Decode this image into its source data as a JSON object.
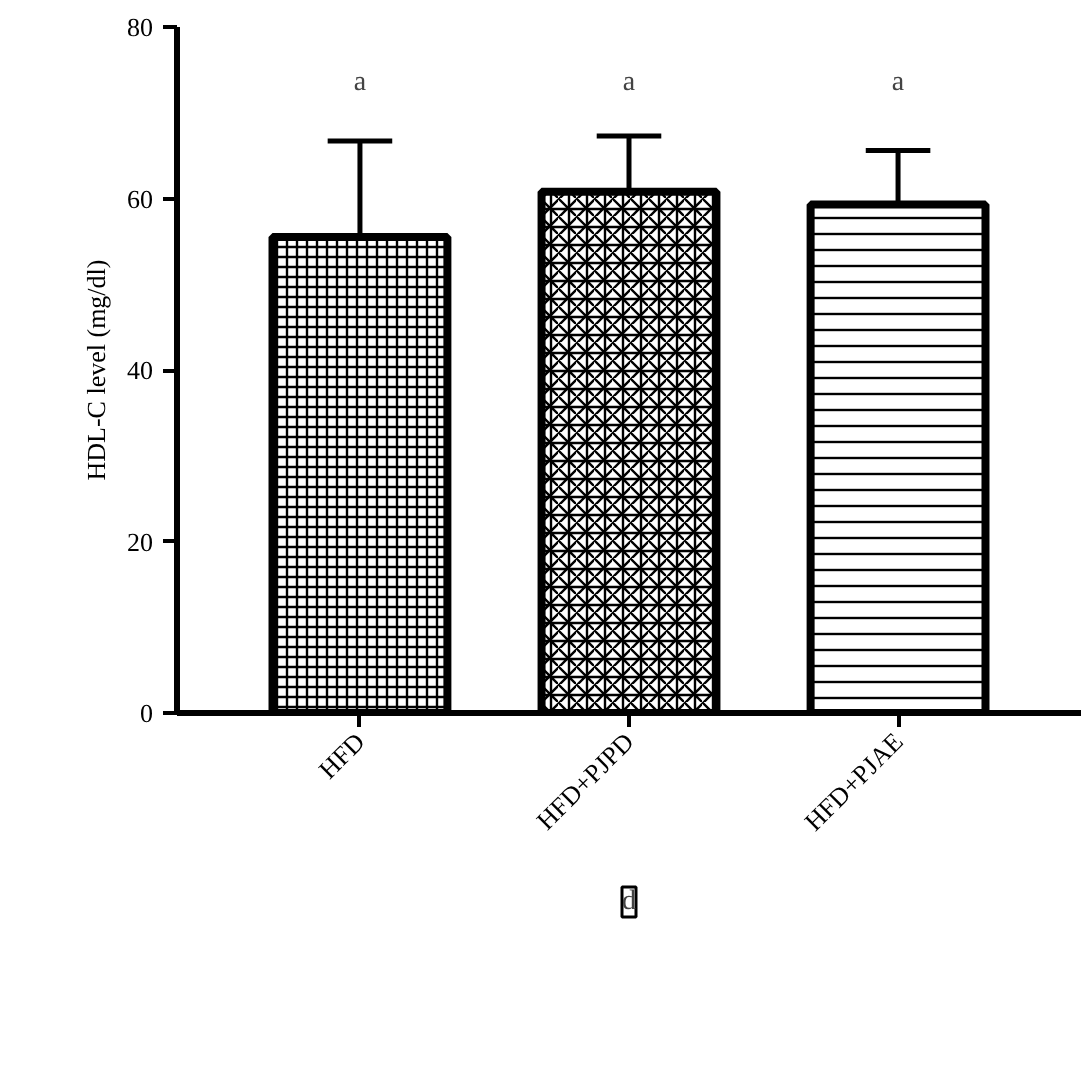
{
  "chart_data": {
    "type": "bar",
    "ylabel": "HDL-C level (mg/dl)",
    "categories": [
      "HFD",
      "HFD+PJPD",
      "HFD+PJAE"
    ],
    "values": [
      55.5,
      60.8,
      59.3
    ],
    "errors": [
      11.2,
      6.5,
      6.3
    ],
    "color": "#000000",
    "ylim": [
      0,
      80
    ],
    "yticks": [
      0,
      20,
      40,
      60,
      80
    ],
    "grid": false,
    "annotations": [
      "a",
      "a",
      "a",
      "d"
    ]
  }
}
